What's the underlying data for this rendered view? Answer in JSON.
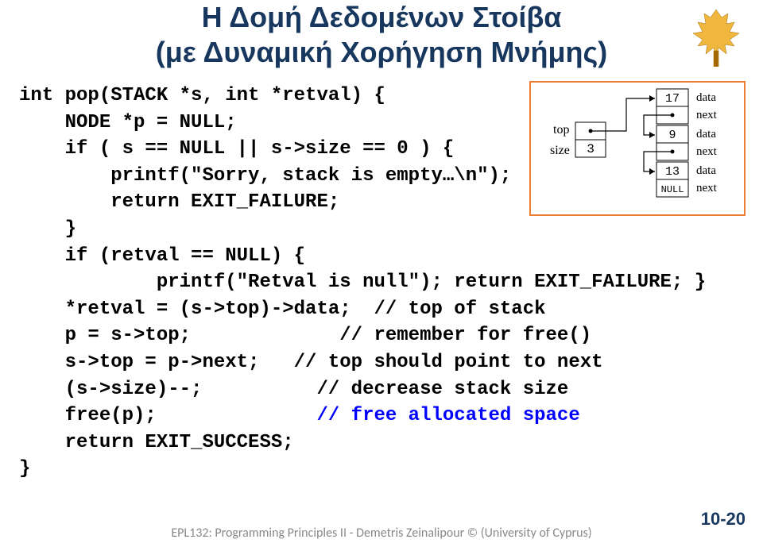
{
  "title": {
    "line1": "Η Δομή Δεδομένων Στοίβα",
    "line2": "(με Δυναμική Χορήγηση Μνήμης)",
    "color": "#17375e",
    "fontsize": 36,
    "font_weight": "bold"
  },
  "logo": {
    "fill": "#efb73e",
    "stroke": "#a66a00"
  },
  "code": {
    "font": "Courier New",
    "fontsize": 24,
    "lines": [
      {
        "indent": 0,
        "parts": [
          {
            "t": "int pop(STACK *s, int *retval) {"
          }
        ]
      },
      {
        "indent": 1,
        "parts": [
          {
            "t": "NODE *p = NULL;"
          }
        ]
      },
      {
        "indent": 1,
        "parts": [
          {
            "t": "if ( s == NULL || s->size == 0 ) {"
          }
        ]
      },
      {
        "indent": 2,
        "parts": [
          {
            "t": "printf(\"Sorry, stack is empty…\\n\");"
          }
        ]
      },
      {
        "indent": 2,
        "parts": [
          {
            "t": "return EXIT_FAILURE;"
          }
        ]
      },
      {
        "indent": 1,
        "parts": [
          {
            "t": "}"
          }
        ]
      },
      {
        "indent": 1,
        "parts": [
          {
            "t": "if (retval == NULL) {"
          }
        ]
      },
      {
        "indent": 3,
        "parts": [
          {
            "t": "printf(\"Retval is null\"); return EXIT_FAILURE; }"
          }
        ]
      },
      {
        "indent": 1,
        "parts": [
          {
            "t": "*retval = (s->top)->data;  // top of stack"
          }
        ]
      },
      {
        "indent": 1,
        "parts": [
          {
            "t": "p = s->top;             // remember for free()"
          }
        ]
      },
      {
        "indent": 1,
        "parts": [
          {
            "t": "s->top = p->next;   // top should point to next"
          }
        ]
      },
      {
        "indent": 1,
        "parts": [
          {
            "t": "(s->size)--;          // decrease stack size"
          }
        ]
      },
      {
        "indent": 1,
        "parts": [
          {
            "t": "free(p);"
          },
          {
            "t": "              // free allocated space",
            "color": "#0000ff"
          }
        ]
      },
      {
        "indent": 1,
        "parts": [
          {
            "t": "return EXIT_SUCCESS;"
          }
        ]
      },
      {
        "indent": 0,
        "parts": [
          {
            "t": "}"
          }
        ]
      }
    ]
  },
  "diagram": {
    "border_color": "#ed7d31",
    "box_border": "#000000",
    "bg": "#ffffff",
    "label_font": "Times New Roman",
    "label_fontsize": 15,
    "val_font": "Courier New",
    "val_fontsize": 15,
    "labels": {
      "top": "top",
      "size": "size",
      "data": "data",
      "next": "next",
      "null": "NULL"
    },
    "top_struct": {
      "size_value": "3"
    },
    "nodes": [
      {
        "value": "17"
      },
      {
        "value": "9"
      },
      {
        "value": "13"
      }
    ]
  },
  "footer": {
    "text": "EPL132: Programming Principles II - Demetris Zeinalipour © (University of Cyprus)",
    "color": "#898989",
    "fontsize": 16
  },
  "page_number": "10-20"
}
